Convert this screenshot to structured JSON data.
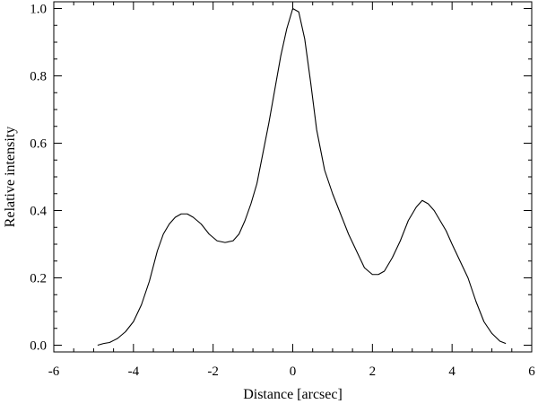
{
  "chart_data": {
    "type": "line",
    "title": "",
    "xlabel": "Distance [arcsec]",
    "ylabel": "Relative intensity",
    "xlim": [
      -6,
      6
    ],
    "ylim": [
      -0.02,
      1.02
    ],
    "x_ticks": [
      -6,
      -4,
      -2,
      0,
      2,
      4,
      6
    ],
    "x_tick_labels": [
      "-6",
      "-4",
      "-2",
      "0",
      "2",
      "4",
      "6"
    ],
    "y_ticks": [
      0.0,
      0.2,
      0.4,
      0.6,
      0.8,
      1.0
    ],
    "y_tick_labels": [
      "0.0",
      "0.2",
      "0.4",
      "0.6",
      "0.8",
      "1.0"
    ],
    "x_minor_step": 0.5,
    "y_minor_step": 0.05,
    "grid": false,
    "legend": "none",
    "line_color": "#000000",
    "series": [
      {
        "x": [
          -4.9,
          -4.75,
          -4.6,
          -4.4,
          -4.2,
          -4.0,
          -3.8,
          -3.6,
          -3.4,
          -3.25,
          -3.1,
          -2.95,
          -2.8,
          -2.65,
          -2.5,
          -2.3,
          -2.1,
          -1.9,
          -1.7,
          -1.5,
          -1.35,
          -1.2,
          -1.05,
          -0.9,
          -0.75,
          -0.6,
          -0.45,
          -0.3,
          -0.15,
          0.0,
          0.15,
          0.3,
          0.45,
          0.6,
          0.8,
          1.0,
          1.2,
          1.4,
          1.6,
          1.8,
          2.0,
          2.15,
          2.3,
          2.5,
          2.7,
          2.9,
          3.1,
          3.25,
          3.4,
          3.55,
          3.7,
          3.85,
          4.0,
          4.2,
          4.4,
          4.6,
          4.8,
          5.0,
          5.2,
          5.35
        ],
        "y": [
          0.0,
          0.005,
          0.008,
          0.02,
          0.04,
          0.07,
          0.12,
          0.19,
          0.28,
          0.33,
          0.36,
          0.38,
          0.39,
          0.39,
          0.38,
          0.36,
          0.33,
          0.31,
          0.305,
          0.31,
          0.33,
          0.37,
          0.42,
          0.48,
          0.57,
          0.66,
          0.76,
          0.86,
          0.94,
          1.0,
          0.99,
          0.91,
          0.78,
          0.64,
          0.52,
          0.45,
          0.39,
          0.33,
          0.28,
          0.23,
          0.21,
          0.21,
          0.22,
          0.26,
          0.31,
          0.37,
          0.41,
          0.43,
          0.42,
          0.4,
          0.37,
          0.34,
          0.3,
          0.25,
          0.2,
          0.13,
          0.07,
          0.035,
          0.012,
          0.005
        ]
      }
    ]
  }
}
